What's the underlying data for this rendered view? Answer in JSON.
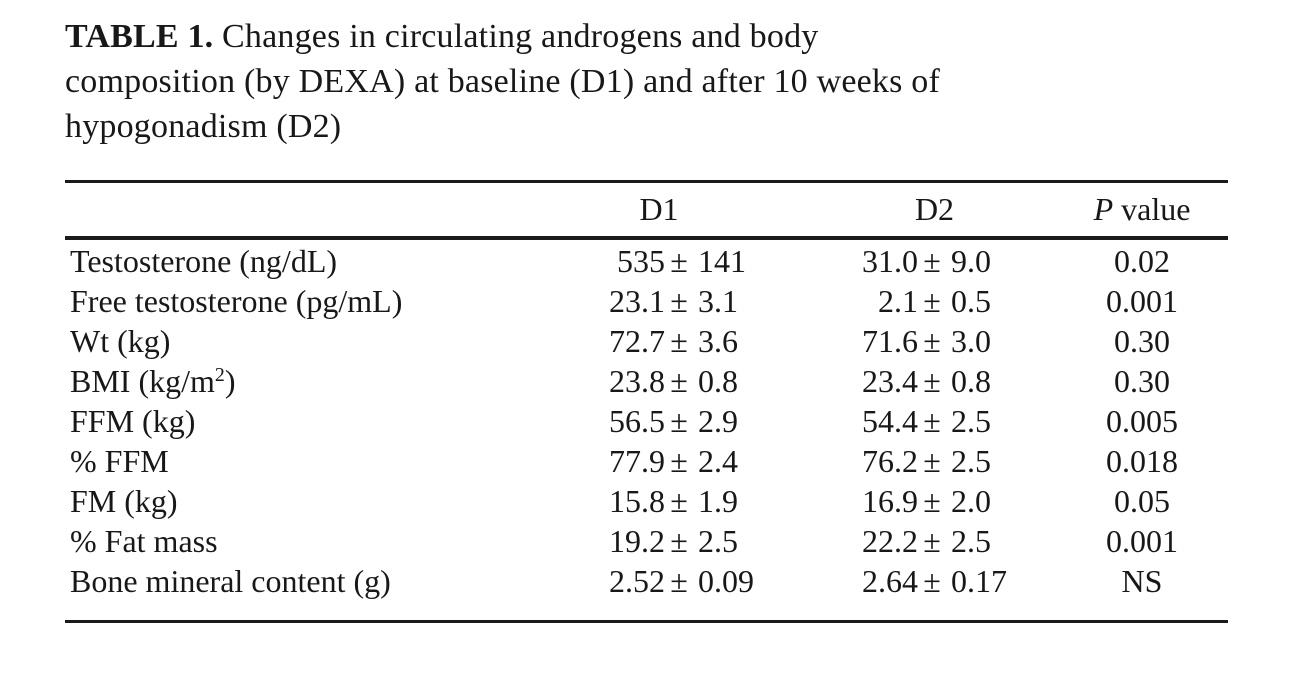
{
  "page": {
    "background": "#ffffff",
    "text_color": "#181818",
    "rule_color": "#1a1a1a"
  },
  "title": {
    "label": "TABLE 1.",
    "lines": [
      " Changes in circulating androgens and body",
      "composition (by DEXA) at baseline (D1) and after 10 weeks of",
      "hypogonadism (D2)"
    ]
  },
  "table": {
    "pm": "±",
    "columns": {
      "d1": "D1",
      "d2": "D2",
      "p_italic": "P",
      "p_rest": " value"
    },
    "rows": [
      {
        "label": "Testosterone (ng/dL)",
        "label_sup": "",
        "label_post": "",
        "d1v": "535",
        "d1e": "141",
        "d2v": "31.0",
        "d2e": "9.0",
        "p": "0.02"
      },
      {
        "label": "Free testosterone (pg/mL)",
        "label_sup": "",
        "label_post": "",
        "d1v": "23.1",
        "d1e": "3.1",
        "d2v": "2.1",
        "d2e": "0.5",
        "p": "0.001"
      },
      {
        "label": "Wt (kg)",
        "label_sup": "",
        "label_post": "",
        "d1v": "72.7",
        "d1e": "3.6",
        "d2v": "71.6",
        "d2e": "3.0",
        "p": "0.30"
      },
      {
        "label": "BMI (kg/m",
        "label_sup": "2",
        "label_post": ")",
        "d1v": "23.8",
        "d1e": "0.8",
        "d2v": "23.4",
        "d2e": "0.8",
        "p": "0.30"
      },
      {
        "label": "FFM (kg)",
        "label_sup": "",
        "label_post": "",
        "d1v": "56.5",
        "d1e": "2.9",
        "d2v": "54.4",
        "d2e": "2.5",
        "p": "0.005"
      },
      {
        "label": "% FFM",
        "label_sup": "",
        "label_post": "",
        "d1v": "77.9",
        "d1e": "2.4",
        "d2v": "76.2",
        "d2e": "2.5",
        "p": "0.018"
      },
      {
        "label": "FM (kg)",
        "label_sup": "",
        "label_post": "",
        "d1v": "15.8",
        "d1e": "1.9",
        "d2v": "16.9",
        "d2e": "2.0",
        "p": "0.05"
      },
      {
        "label": "% Fat mass",
        "label_sup": "",
        "label_post": "",
        "d1v": "19.2",
        "d1e": "2.5",
        "d2v": "22.2",
        "d2e": "2.5",
        "p": "0.001"
      },
      {
        "label": "Bone mineral content (g)",
        "label_sup": "",
        "label_post": "",
        "d1v": "2.52",
        "d1e": "0.09",
        "d2v": "2.64",
        "d2e": "0.17",
        "p": "NS"
      }
    ]
  }
}
